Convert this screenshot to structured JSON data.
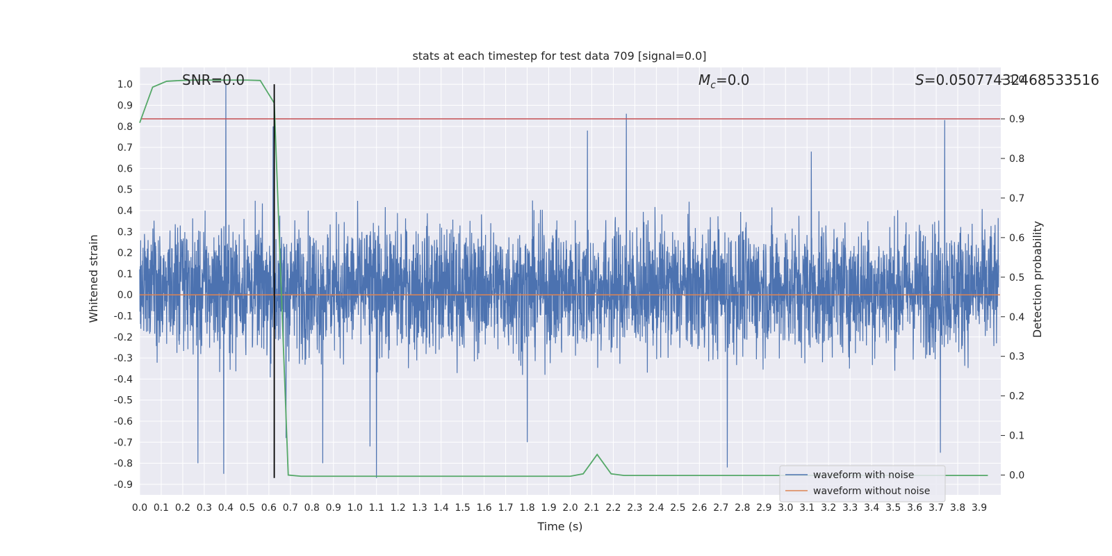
{
  "chart_data": {
    "type": "line",
    "title": "stats at each timestep for test data 709 [signal=0.0]",
    "xlabel": "Time (s)",
    "ylabel": "Whitened strain",
    "ylabel_right": "Detection probability",
    "xlim": [
      0.0,
      4.0
    ],
    "ylim": [
      -0.95,
      1.08
    ],
    "ylim_right": [
      -0.05,
      1.03
    ],
    "x_ticks": [
      "0.0",
      "0.1",
      "0.2",
      "0.3",
      "0.4",
      "0.5",
      "0.6",
      "0.7",
      "0.8",
      "0.9",
      "1.0",
      "1.1",
      "1.2",
      "1.3",
      "1.4",
      "1.5",
      "1.6",
      "1.7",
      "1.8",
      "1.9",
      "2.0",
      "2.1",
      "2.2",
      "2.3",
      "2.4",
      "2.5",
      "2.6",
      "2.7",
      "2.8",
      "2.9",
      "3.0",
      "3.1",
      "3.2",
      "3.3",
      "3.4",
      "3.5",
      "3.6",
      "3.7",
      "3.8",
      "3.9"
    ],
    "y_ticks": [
      "1.0",
      "0.9",
      "0.8",
      "0.7",
      "0.6",
      "0.5",
      "0.4",
      "0.3",
      "0.2",
      "0.1",
      "0.0",
      "-0.1",
      "-0.2",
      "-0.3",
      "-0.4",
      "-0.5",
      "-0.6",
      "-0.7",
      "-0.8",
      "-0.9"
    ],
    "y_right_ticks": [
      "1.0",
      "0.9",
      "0.8",
      "0.7",
      "0.6",
      "0.5",
      "0.4",
      "0.3",
      "0.2",
      "0.1",
      "0.0"
    ],
    "annotations": {
      "snr": "SNR=0.0",
      "mc_symbol": "M",
      "mc_sub": "c",
      "mc_value": "=0.0",
      "s_symbol": "S",
      "s_value": "=0.05077432468533516"
    },
    "series": [
      {
        "name": "waveform with noise",
        "color": "#4c72b0",
        "kind": "noise",
        "peaks": [
          {
            "x": 0.4,
            "y": 1.0
          },
          {
            "x": 0.39,
            "y": -0.85
          },
          {
            "x": 0.27,
            "y": -0.8
          },
          {
            "x": 0.62,
            "y": 0.8
          },
          {
            "x": 0.68,
            "y": -0.68
          },
          {
            "x": 0.85,
            "y": -0.8
          },
          {
            "x": 1.1,
            "y": -0.87
          },
          {
            "x": 1.07,
            "y": -0.72
          },
          {
            "x": 2.26,
            "y": 0.86
          },
          {
            "x": 2.08,
            "y": 0.78
          },
          {
            "x": 2.73,
            "y": -0.82
          },
          {
            "x": 3.74,
            "y": 0.83
          },
          {
            "x": 3.72,
            "y": -0.75
          },
          {
            "x": 1.8,
            "y": -0.7
          },
          {
            "x": 3.12,
            "y": 0.68
          }
        ]
      },
      {
        "name": "waveform without noise",
        "color": "#dd8452",
        "x": [
          0.0,
          4.0
        ],
        "y": [
          0.0,
          0.0
        ]
      },
      {
        "name": "detection probability",
        "color": "#55a868",
        "axis": "right",
        "x": [
          0.0,
          0.06,
          0.125,
          0.19,
          0.25,
          0.31,
          0.375,
          0.44,
          0.5,
          0.56,
          0.625,
          0.69,
          0.75,
          0.81,
          0.875,
          1.0,
          1.25,
          1.5,
          1.75,
          2.0,
          2.06,
          2.125,
          2.19,
          2.25,
          2.5,
          3.0,
          3.5,
          3.94
        ],
        "y": [
          0.89,
          0.98,
          0.995,
          0.997,
          0.998,
          0.998,
          0.998,
          0.998,
          0.998,
          0.997,
          0.94,
          0.0,
          -0.003,
          -0.003,
          -0.003,
          -0.003,
          -0.003,
          -0.003,
          -0.003,
          -0.003,
          0.003,
          0.052,
          0.003,
          -0.001,
          -0.001,
          -0.001,
          -0.001,
          -0.001
        ]
      },
      {
        "name": "threshold",
        "color": "#c44e52",
        "axis": "right",
        "x": [
          0.0,
          4.0
        ],
        "y": [
          0.9,
          0.9
        ]
      },
      {
        "name": "prediction marker",
        "color": "#000000",
        "kind": "vline",
        "x": 0.625,
        "y_range": [
          -0.87,
          1.0
        ]
      }
    ],
    "legend": {
      "entries": [
        "waveform with noise",
        "waveform without noise"
      ],
      "placement": "bottom-right"
    }
  }
}
